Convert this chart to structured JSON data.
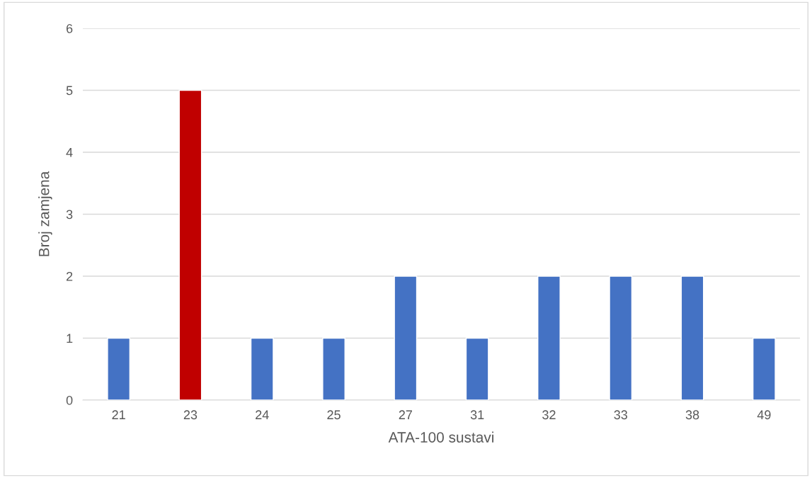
{
  "chart_data": {
    "type": "bar",
    "xlabel": "ATA-100 sustavi",
    "ylabel": "Broj zamjena",
    "categories": [
      "21",
      "23",
      "24",
      "25",
      "27",
      "31",
      "32",
      "33",
      "38",
      "49"
    ],
    "values": [
      1,
      5,
      1,
      1,
      2,
      1,
      2,
      2,
      2,
      1
    ],
    "colors": [
      "#4472c4",
      "#c00000",
      "#4472c4",
      "#4472c4",
      "#4472c4",
      "#4472c4",
      "#4472c4",
      "#4472c4",
      "#4472c4",
      "#4472c4"
    ],
    "ylim": [
      0,
      6
    ],
    "yticks": [
      0,
      1,
      2,
      3,
      4,
      5,
      6
    ],
    "grid": "y",
    "legend": false
  }
}
